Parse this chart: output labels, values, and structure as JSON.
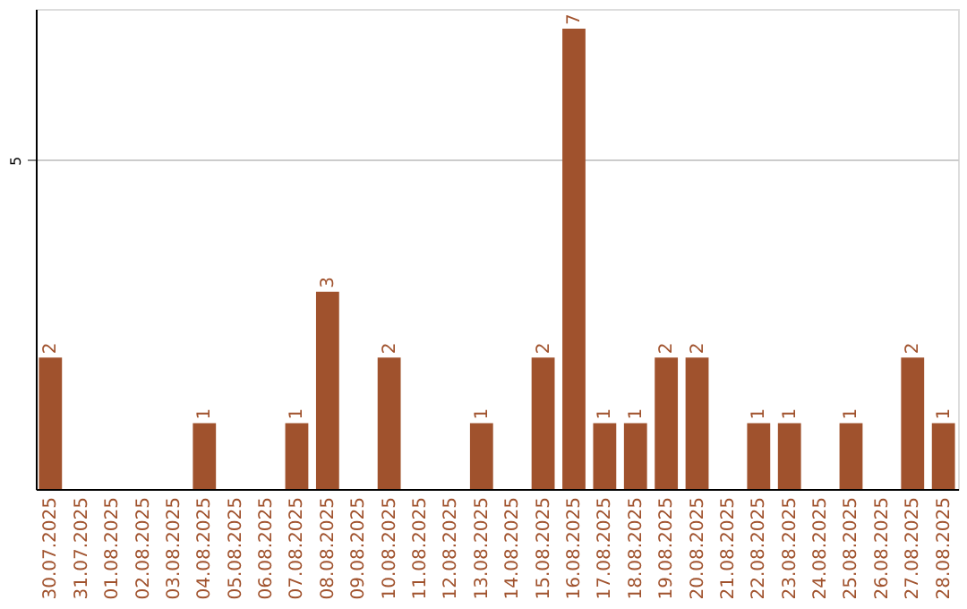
{
  "chart_data": {
    "type": "bar",
    "categories": [
      "30.07.2025",
      "31.07.2025",
      "01.08.2025",
      "02.08.2025",
      "03.08.2025",
      "04.08.2025",
      "05.08.2025",
      "06.08.2025",
      "07.08.2025",
      "08.08.2025",
      "09.08.2025",
      "10.08.2025",
      "11.08.2025",
      "12.08.2025",
      "13.08.2025",
      "14.08.2025",
      "15.08.2025",
      "16.08.2025",
      "17.08.2025",
      "18.08.2025",
      "19.08.2025",
      "20.08.2025",
      "21.08.2025",
      "22.08.2025",
      "23.08.2025",
      "24.08.2025",
      "25.08.2025",
      "26.08.2025",
      "27.08.2025",
      "28.08.2025"
    ],
    "values": [
      2,
      0,
      0,
      0,
      0,
      1,
      0,
      0,
      1,
      3,
      0,
      2,
      0,
      0,
      1,
      0,
      2,
      7,
      1,
      1,
      2,
      2,
      0,
      1,
      1,
      0,
      1,
      0,
      2,
      1
    ],
    "value_labels": [
      "2",
      null,
      null,
      null,
      null,
      "1",
      null,
      null,
      "1",
      "3",
      null,
      "2",
      null,
      null,
      "1",
      null,
      "2",
      "7",
      "1",
      "1",
      "2",
      "2",
      null,
      "1",
      "1",
      null,
      "1",
      null,
      "2",
      "1"
    ],
    "color": "#a0522d",
    "ylim": [
      0,
      7.3
    ],
    "yticks": [
      5
    ],
    "grid": "y"
  }
}
